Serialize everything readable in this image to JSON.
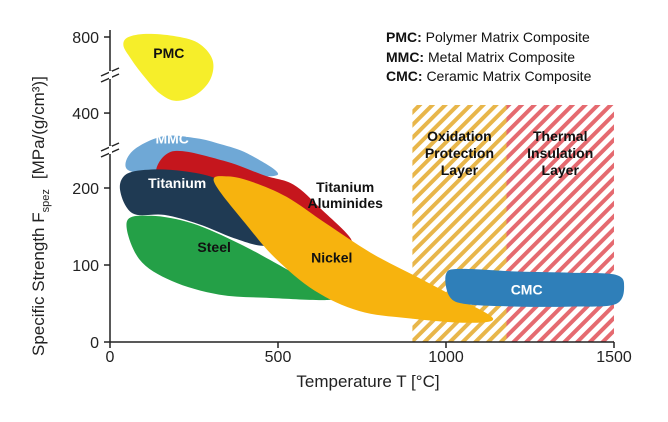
{
  "chart_data": {
    "type": "area",
    "title": "",
    "xlabel": "Temperature T  [°C]",
    "ylabel_main": "Specific Strength F",
    "ylabel_sub": "spez",
    "ylabel_units": "[MPa/(g/cm³)]",
    "x_ticks": [
      "0",
      "500",
      "1000",
      "1500"
    ],
    "y_ticks": [
      "0",
      "100",
      "200",
      "400",
      "800"
    ],
    "axis_break": true,
    "grid": false,
    "legend": [
      {
        "abbr": "PMC:",
        "text": "Polymer Matrix Composite"
      },
      {
        "abbr": "MMC:",
        "text": "Metal Matrix Composite"
      },
      {
        "abbr": "CMC:",
        "text": "Ceramic Matrix Composite"
      }
    ],
    "zones": [
      {
        "name": "Oxidation Protection Layer",
        "lines": [
          "Oxidation",
          "Protection",
          "Layer"
        ],
        "x_range": [
          900,
          1180
        ],
        "color": "#e8b64a",
        "hatch": "diagonal"
      },
      {
        "name": "Thermal Insulation Layer",
        "lines": [
          "Thermal",
          "Insulation",
          "Layer"
        ],
        "x_range": [
          1180,
          1500
        ],
        "color": "#e56a70",
        "hatch": "diagonal"
      }
    ],
    "regions": [
      {
        "name": "PMC",
        "label_lines": [
          "PMC"
        ],
        "color": "#f6ee2a",
        "label_color": "#111111",
        "temperature_range_C": [
          40,
          310
        ],
        "strength_range": [
          460,
          820
        ],
        "strength_axis_segment": "upper",
        "label_pos": [
          175,
          690
        ]
      },
      {
        "name": "MMC",
        "label_lines": [
          "MMC"
        ],
        "color": "#6fa8d6",
        "label_color": "#ffffff",
        "temperature_range_C": [
          50,
          500
        ],
        "strength_range": [
          215,
          310
        ],
        "strength_axis_segment": "middle",
        "label_pos": [
          185,
          275
        ]
      },
      {
        "name": "Titanium Aluminides",
        "label_lines": [
          "Titanium",
          "Aluminides"
        ],
        "color": "#c5161d",
        "label_color": "#111111",
        "temperature_range_C": [
          140,
          720
        ],
        "strength_range": [
          130,
          250
        ],
        "label_pos": [
          700,
          195
        ]
      },
      {
        "name": "Titanium",
        "label_lines": [
          "Titanium"
        ],
        "color": "#1f3a53",
        "label_color": "#ffffff",
        "temperature_range_C": [
          30,
          500
        ],
        "strength_range": [
          125,
          225
        ],
        "label_pos": [
          200,
          200
        ]
      },
      {
        "name": "Steel",
        "label_lines": [
          "Steel"
        ],
        "color": "#24a047",
        "label_color": "#111111",
        "temperature_range_C": [
          50,
          660
        ],
        "strength_range": [
          55,
          165
        ],
        "label_pos": [
          310,
          117
        ]
      },
      {
        "name": "Nickel",
        "label_lines": [
          "Nickel"
        ],
        "color": "#f7b30e",
        "label_color": "#111111",
        "temperature_range_C": [
          310,
          1140
        ],
        "strength_range": [
          25,
          215
        ],
        "label_pos": [
          660,
          103
        ]
      },
      {
        "name": "CMC",
        "label_lines": [
          "CMC"
        ],
        "color": "#2f7fb9",
        "label_color": "#ffffff",
        "temperature_range_C": [
          1000,
          1530
        ],
        "strength_range": [
          45,
          95
        ],
        "label_pos": [
          1240,
          62
        ]
      }
    ]
  }
}
